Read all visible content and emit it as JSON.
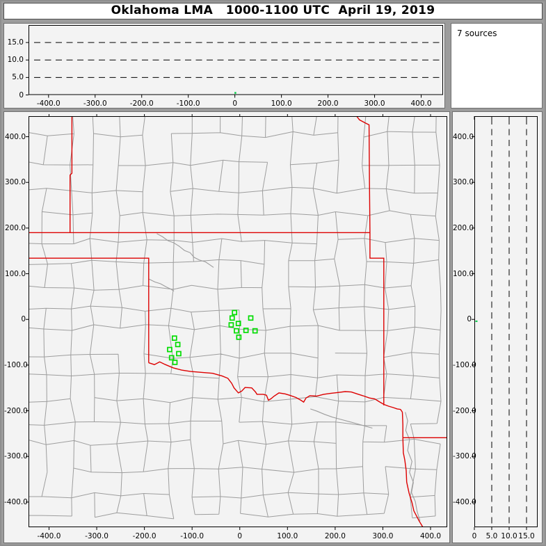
{
  "title": "Oklahoma LMA   1000-1100 UTC  April 19, 2019",
  "sources_panel": {
    "label": "7 sources"
  },
  "colors": {
    "border_red": "#dd0000",
    "station_green": "#00dd00",
    "source_green": "#00cc44",
    "county_gray": "#9d9d9d",
    "plot_bg": "#f3f3f3",
    "frame_gray": "#9c9c9c",
    "spine_black": "#000000"
  },
  "chart_data": [
    {
      "type": "scatter",
      "panel": "altitude-vs-east-west",
      "title": "Oklahoma LMA 1000-1100 UTC April 19, 2019",
      "xlim": [
        -443,
        447
      ],
      "ylim": [
        0,
        20
      ],
      "xticks": {
        "values": [
          -400,
          -300,
          -200,
          -100,
          0,
          100,
          200,
          300,
          400
        ],
        "labels": [
          "-400.0",
          "-300.0",
          "-200.0",
          "-100.0",
          "0",
          "100.0",
          "200.0",
          "300.0",
          "400.0"
        ]
      },
      "yticks": {
        "values": [
          0,
          5,
          10,
          15
        ],
        "labels": [
          "0",
          "5.0",
          "10.0",
          "15.0"
        ]
      },
      "dashed_y": [
        5,
        10,
        15
      ],
      "grid": true,
      "legend_position": "none",
      "points": [
        [
          1,
          0.6
        ]
      ]
    },
    {
      "type": "scatter",
      "panel": "plan-view-map",
      "xlim": [
        -443,
        435
      ],
      "ylim": [
        -455,
        445
      ],
      "xticks": {
        "values": [
          -400,
          -300,
          -200,
          -100,
          0,
          100,
          200,
          300,
          400
        ],
        "labels": [
          "-400.0",
          "-300.0",
          "-200.0",
          "-100.0",
          "0",
          "100.0",
          "200.0",
          "300.0",
          "400.0"
        ]
      },
      "yticks": {
        "values": [
          400,
          300,
          200,
          100,
          0,
          -100,
          -200,
          -300,
          -400
        ],
        "labels": [
          "400.0",
          "300.0",
          "200.0",
          "100.0",
          "0",
          "-100.0",
          "-200.0",
          "-300.0",
          "-400.0"
        ]
      },
      "stations": [
        [
          -11,
          15
        ],
        [
          -16,
          3
        ],
        [
          23,
          3
        ],
        [
          -18,
          -12
        ],
        [
          -3,
          -9
        ],
        [
          -7,
          -25
        ],
        [
          13,
          -24
        ],
        [
          32,
          -25
        ],
        [
          -2,
          -39
        ],
        [
          -137,
          -41
        ],
        [
          -130,
          -55
        ],
        [
          -147,
          -66
        ],
        [
          -128,
          -75
        ],
        [
          -143,
          -84
        ],
        [
          -136,
          -94
        ]
      ],
      "points": [
        [
          1,
          -4
        ]
      ],
      "state_borders": [
        [
          [
            -352,
            445
          ],
          [
            -352,
            320
          ],
          [
            -356,
            316
          ],
          [
            -356,
            196
          ],
          [
            -356,
            190
          ]
        ],
        [
          [
            -443,
            190
          ],
          [
            273,
            190
          ]
        ],
        [
          [
            -443,
            134
          ],
          [
            -191,
            134
          ],
          [
            -191,
            -95
          ]
        ],
        [
          [
            -191,
            -95
          ],
          [
            -179,
            -99
          ],
          [
            -168,
            -93
          ],
          [
            -156,
            -99
          ],
          [
            -140,
            -106
          ],
          [
            -122,
            -111
          ],
          [
            -103,
            -114
          ],
          [
            -79,
            -116
          ],
          [
            -57,
            -118
          ],
          [
            -37,
            -124
          ],
          [
            -25,
            -129
          ],
          [
            -17,
            -140
          ],
          [
            -12,
            -150
          ],
          [
            -3,
            -161
          ],
          [
            4,
            -157
          ],
          [
            11,
            -149
          ],
          [
            25,
            -150
          ],
          [
            33,
            -159
          ],
          [
            36,
            -164
          ],
          [
            49,
            -164
          ],
          [
            56,
            -166
          ],
          [
            60,
            -177
          ],
          [
            65,
            -174
          ],
          [
            72,
            -168
          ],
          [
            82,
            -161
          ],
          [
            95,
            -163
          ],
          [
            104,
            -166
          ],
          [
            118,
            -171
          ],
          [
            128,
            -177
          ],
          [
            134,
            -181
          ],
          [
            139,
            -172
          ],
          [
            147,
            -167
          ],
          [
            161,
            -168
          ],
          [
            176,
            -164
          ],
          [
            190,
            -162
          ],
          [
            206,
            -160
          ],
          [
            221,
            -158
          ],
          [
            234,
            -159
          ],
          [
            246,
            -163
          ],
          [
            258,
            -167
          ],
          [
            272,
            -172
          ],
          [
            283,
            -174
          ],
          [
            292,
            -180
          ],
          [
            302,
            -186
          ],
          [
            312,
            -190
          ],
          [
            322,
            -193
          ],
          [
            330,
            -196
          ],
          [
            337,
            -197
          ],
          [
            341,
            -203
          ]
        ],
        [
          [
            245,
            445
          ],
          [
            251,
            437
          ],
          [
            263,
            430
          ],
          [
            271,
            426
          ],
          [
            272,
            300
          ],
          [
            273,
            190
          ],
          [
            273,
            134
          ],
          [
            302,
            134
          ],
          [
            302,
            -188
          ]
        ],
        [
          [
            341,
            -203
          ],
          [
            342,
            -230
          ],
          [
            342,
            -259
          ]
        ],
        [
          [
            342,
            -259
          ],
          [
            436,
            -259
          ]
        ],
        [
          [
            342,
            -259
          ],
          [
            343,
            -292
          ],
          [
            346,
            -308
          ],
          [
            349,
            -331
          ],
          [
            350,
            -356
          ],
          [
            355,
            -380
          ],
          [
            361,
            -401
          ],
          [
            365,
            -419
          ],
          [
            376,
            -441
          ],
          [
            384,
            -455
          ]
        ]
      ],
      "rivers": [
        [
          [
            -174,
            188
          ],
          [
            -162,
            181
          ],
          [
            -150,
            172
          ],
          [
            -139,
            168
          ],
          [
            -127,
            160
          ],
          [
            -116,
            151
          ],
          [
            -104,
            146
          ],
          [
            -96,
            136
          ],
          [
            -85,
            130
          ],
          [
            -72,
            126
          ],
          [
            -62,
            119
          ],
          [
            -55,
            114
          ]
        ],
        [
          [
            -190,
            88
          ],
          [
            -178,
            82
          ],
          [
            -166,
            78
          ],
          [
            -154,
            71
          ],
          [
            -144,
            66
          ],
          [
            -138,
            62
          ]
        ],
        [
          [
            148,
            -196
          ],
          [
            162,
            -201
          ],
          [
            178,
            -208
          ],
          [
            194,
            -214
          ],
          [
            212,
            -219
          ],
          [
            230,
            -224
          ],
          [
            248,
            -229
          ],
          [
            264,
            -234
          ],
          [
            278,
            -238
          ]
        ],
        [
          [
            347,
            -203
          ],
          [
            352,
            -222
          ],
          [
            348,
            -243
          ],
          [
            356,
            -263
          ],
          [
            352,
            -287
          ],
          [
            361,
            -311
          ],
          [
            356,
            -335
          ],
          [
            364,
            -357
          ],
          [
            360,
            -379
          ],
          [
            368,
            -399
          ],
          [
            372,
            -421
          ],
          [
            378,
            -441
          ]
        ]
      ]
    },
    {
      "type": "scatter",
      "panel": "north-south-vs-altitude",
      "xlim": [
        0,
        18.2
      ],
      "ylim": [
        -455,
        445
      ],
      "xticks": {
        "values": [
          0,
          5,
          10,
          15
        ],
        "labels": [
          "0",
          "5.0",
          "10.0",
          "15.0"
        ]
      },
      "yticks": {
        "values": [
          400,
          300,
          200,
          100,
          0,
          -100,
          -200,
          -300,
          -400
        ],
        "labels": [
          "400.0",
          "300.0",
          "200.0",
          "100.0",
          "0",
          "-100.0",
          "-200.0",
          "-300.0",
          "-400.0"
        ]
      },
      "dashed_x": [
        5,
        10,
        15
      ],
      "points": [
        [
          0.6,
          -4
        ]
      ]
    }
  ]
}
